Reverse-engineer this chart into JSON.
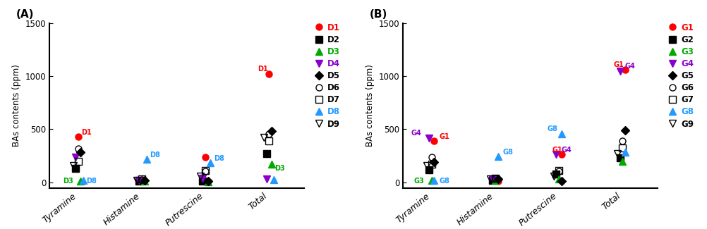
{
  "panel_A": {
    "title": "(A)",
    "ylabel": "BAs contents (ppm)",
    "categories": [
      "Tyramine",
      "Histamine",
      "Putrescine",
      "Total"
    ],
    "ylim": [
      -50,
      1500
    ],
    "yticks": [
      0,
      500,
      1000,
      1500
    ],
    "series": {
      "D1": {
        "color": "#FF0000",
        "marker": "o",
        "filled": true,
        "values": [
          430,
          12,
          240,
          1020
        ]
      },
      "D2": {
        "color": "#000000",
        "marker": "s",
        "filled": true,
        "values": [
          130,
          15,
          10,
          270
        ]
      },
      "D3": {
        "color": "#00AA00",
        "marker": "^",
        "filled": true,
        "values": [
          15,
          10,
          8,
          170
        ]
      },
      "D4": {
        "color": "#8800CC",
        "marker": "v",
        "filled": true,
        "values": [
          240,
          20,
          38,
          30
        ]
      },
      "D5": {
        "color": "#000000",
        "marker": "D",
        "filled": true,
        "values": [
          285,
          18,
          12,
          480
        ]
      },
      "D6": {
        "color": "#000000",
        "marker": "o",
        "filled": false,
        "values": [
          315,
          25,
          105,
          460
        ]
      },
      "D7": {
        "color": "#000000",
        "marker": "s",
        "filled": false,
        "values": [
          200,
          30,
          115,
          390
        ]
      },
      "D8": {
        "color": "#2299FF",
        "marker": "^",
        "filled": true,
        "values": [
          20,
          215,
          185,
          25
        ]
      },
      "D9": {
        "color": "#000000",
        "marker": "v",
        "filled": false,
        "values": [
          160,
          22,
          58,
          425
        ]
      }
    },
    "labels": {
      "D1": {
        "Tyramine": [
          0.05,
          8
        ],
        "Total": [
          -0.18,
          15
        ]
      },
      "D3": {
        "Tyramine": [
          -0.28,
          -35
        ]
      },
      "D8": {
        "Tyramine": [
          0.05,
          -40
        ],
        "Histamine": [
          0.05,
          8
        ],
        "Putrescine": [
          0.05,
          8
        ]
      },
      "D3_total": {
        "Total": [
          0.05,
          -5
        ]
      }
    },
    "legend": [
      "D1",
      "D2",
      "D3",
      "D4",
      "D5",
      "D6",
      "D7",
      "D8",
      "D9"
    ]
  },
  "panel_B": {
    "title": "(B)",
    "ylabel": "BAs contents (ppm)",
    "categories": [
      "Tyramine",
      "Histamine",
      "Putrescine",
      "Total"
    ],
    "ylim": [
      -50,
      1500
    ],
    "yticks": [
      0,
      500,
      1000,
      1500
    ],
    "series": {
      "G1": {
        "color": "#FF0000",
        "marker": "o",
        "filled": true,
        "values": [
          390,
          15,
          265,
          1060
        ]
      },
      "G2": {
        "color": "#000000",
        "marker": "s",
        "filled": true,
        "values": [
          120,
          22,
          82,
          230
        ]
      },
      "G3": {
        "color": "#00AA00",
        "marker": "^",
        "filled": true,
        "values": [
          18,
          18,
          35,
          200
        ]
      },
      "G4": {
        "color": "#8800CC",
        "marker": "v",
        "filled": true,
        "values": [
          420,
          32,
          265,
          1045
        ]
      },
      "G5": {
        "color": "#000000",
        "marker": "D",
        "filled": true,
        "values": [
          190,
          30,
          10,
          490
        ]
      },
      "G6": {
        "color": "#000000",
        "marker": "o",
        "filled": false,
        "values": [
          235,
          40,
          105,
          390
        ]
      },
      "G7": {
        "color": "#000000",
        "marker": "s",
        "filled": false,
        "values": [
          170,
          37,
          115,
          325
        ]
      },
      "G8": {
        "color": "#2299FF",
        "marker": "^",
        "filled": true,
        "values": [
          22,
          245,
          455,
          285
        ]
      },
      "G9": {
        "color": "#000000",
        "marker": "v",
        "filled": false,
        "values": [
          160,
          30,
          62,
          272
        ]
      }
    },
    "labels": {
      "G1": {
        "Tyramine": [
          0.08,
          8
        ],
        "Putrescine": [
          -0.15,
          8
        ],
        "Total": [
          -0.18,
          15
        ]
      },
      "G3": {
        "Tyramine": [
          -0.28,
          -38
        ]
      },
      "G4": {
        "Tyramine": [
          -0.28,
          8
        ],
        "Putrescine": [
          0.08,
          8
        ],
        "Total": [
          0.08,
          15
        ]
      },
      "G8": {
        "Tyramine": [
          0.08,
          -40
        ],
        "Histamine": [
          0.08,
          8
        ],
        "Putrescine": [
          -0.22,
          15
        ]
      }
    },
    "legend": [
      "G1",
      "G2",
      "G3",
      "G4",
      "G5",
      "G6",
      "G7",
      "G8",
      "G9"
    ]
  },
  "color_map": {
    "D1": "#FF0000",
    "D2": "#000000",
    "D3": "#00AA00",
    "D4": "#8800CC",
    "D5": "#000000",
    "D6": "#000000",
    "D7": "#000000",
    "D8": "#2299FF",
    "D9": "#000000",
    "G1": "#FF0000",
    "G2": "#000000",
    "G3": "#00AA00",
    "G4": "#8800CC",
    "G5": "#000000",
    "G6": "#000000",
    "G7": "#000000",
    "G8": "#2299FF",
    "G9": "#000000"
  },
  "marker_map": {
    "D1": "o",
    "D2": "s",
    "D3": "^",
    "D4": "v",
    "D5": "D",
    "D6": "o",
    "D7": "s",
    "D8": "^",
    "D9": "v",
    "G1": "o",
    "G2": "s",
    "G3": "^",
    "G4": "v",
    "G5": "D",
    "G6": "o",
    "G7": "s",
    "G8": "^",
    "G9": "v"
  },
  "filled_map": {
    "D1": true,
    "D2": true,
    "D3": true,
    "D4": true,
    "D5": true,
    "D6": false,
    "D7": false,
    "D8": true,
    "D9": false,
    "G1": true,
    "G2": true,
    "G3": true,
    "G4": true,
    "G5": true,
    "G6": false,
    "G7": false,
    "G8": true,
    "G9": false
  },
  "x_offsets_A": {
    "D1": 0.0,
    "D2": -0.04,
    "D3": 0.04,
    "D4": -0.04,
    "D5": 0.04,
    "D6": 0.0,
    "D7": 0.0,
    "D8": 0.08,
    "D9": -0.08
  },
  "x_offsets_B": {
    "G1": 0.04,
    "G2": -0.04,
    "G3": 0.0,
    "G4": -0.04,
    "G5": 0.04,
    "G6": 0.0,
    "G7": 0.0,
    "G8": 0.04,
    "G9": -0.08
  }
}
